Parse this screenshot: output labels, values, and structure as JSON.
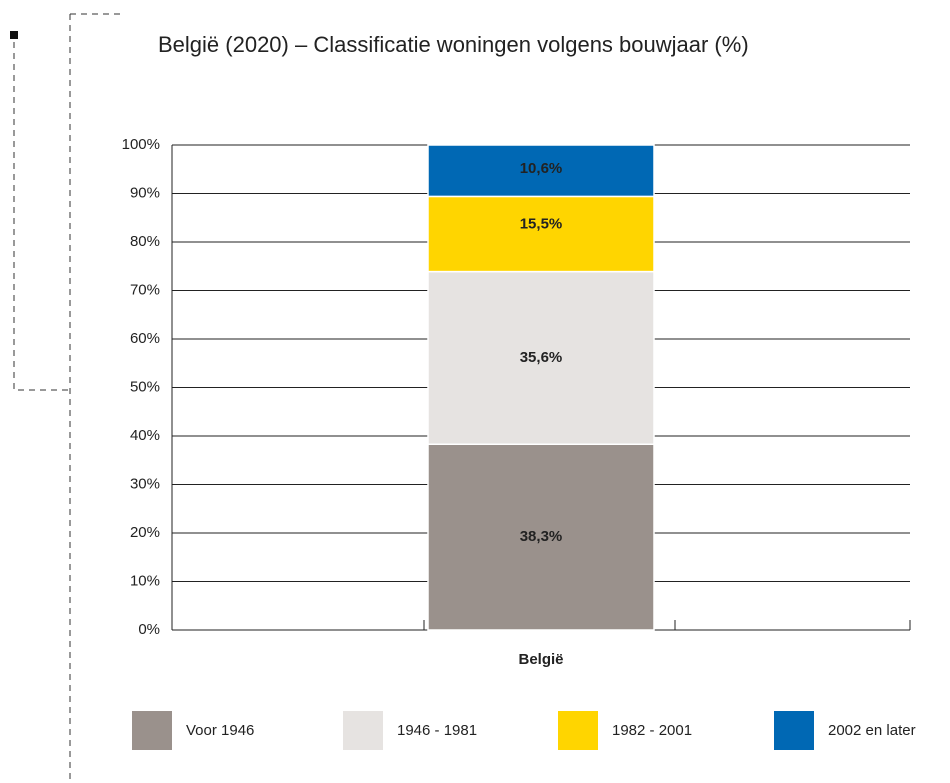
{
  "chart_data": {
    "type": "stacked_bar",
    "title": "België (2020) – Classificatie woningen volgens bouwjaar (%)",
    "categories": [
      "België"
    ],
    "series": [
      {
        "name": "Voor 1946",
        "color": "#9a918c",
        "values": [
          38.3
        ],
        "value_labels": [
          "38,3%"
        ]
      },
      {
        "name": "1946 - 1981",
        "color": "#e6e3e1",
        "values": [
          35.6
        ],
        "value_labels": [
          "35,6%"
        ]
      },
      {
        "name": "1982 - 2001",
        "color": "#ffd500",
        "values": [
          15.5
        ],
        "value_labels": [
          "15,5%"
        ]
      },
      {
        "name": "2002 en later",
        "color": "#0068b4",
        "values": [
          10.6
        ],
        "value_labels": [
          "10,6%"
        ]
      }
    ],
    "ylim": [
      0,
      100
    ],
    "yticks": [
      {
        "value": 0,
        "label": "0%"
      },
      {
        "value": 10,
        "label": "10%"
      },
      {
        "value": 20,
        "label": "20%"
      },
      {
        "value": 30,
        "label": "30%"
      },
      {
        "value": 40,
        "label": "40%"
      },
      {
        "value": 50,
        "label": "50%"
      },
      {
        "value": 60,
        "label": "60%"
      },
      {
        "value": 70,
        "label": "70%"
      },
      {
        "value": 80,
        "label": "80%"
      },
      {
        "value": 90,
        "label": "90%"
      },
      {
        "value": 100,
        "label": "100%"
      }
    ],
    "grid": true,
    "legend": "bottom"
  }
}
